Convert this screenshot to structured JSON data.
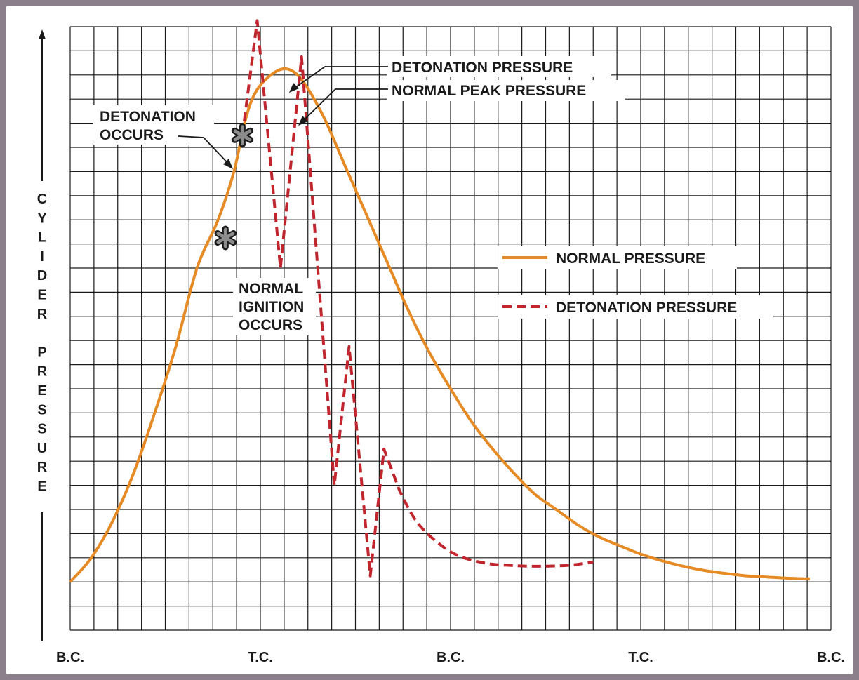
{
  "chart_data": {
    "type": "line",
    "ylabel": "CYLIDER PRESSURE",
    "x_ticks": [
      "B.C.",
      "T.C.",
      "B.C.",
      "T.C.",
      "B.C."
    ],
    "xlim": [
      0,
      720
    ],
    "ylim": [
      0,
      100
    ],
    "grid": true,
    "legend_position": "right",
    "colors": {
      "normal": "#e58a24",
      "detonation": "#c1262e",
      "grid": "#1a1a1a",
      "frame_bg": "#8b7f8c"
    },
    "series": [
      {
        "name": "NORMAL PRESSURE",
        "style": "solid",
        "points": [
          [
            0,
            8
          ],
          [
            20,
            12
          ],
          [
            40,
            18
          ],
          [
            60,
            26
          ],
          [
            80,
            36
          ],
          [
            100,
            47
          ],
          [
            120,
            60
          ],
          [
            140,
            68
          ],
          [
            155,
            76
          ],
          [
            165,
            84
          ],
          [
            175,
            89
          ],
          [
            190,
            92
          ],
          [
            205,
            93
          ],
          [
            220,
            91
          ],
          [
            240,
            85
          ],
          [
            260,
            77
          ],
          [
            280,
            69
          ],
          [
            300,
            61
          ],
          [
            320,
            53
          ],
          [
            340,
            46
          ],
          [
            360,
            40
          ],
          [
            380,
            34.5
          ],
          [
            400,
            30
          ],
          [
            420,
            26
          ],
          [
            440,
            22.5
          ],
          [
            460,
            20
          ],
          [
            480,
            17.5
          ],
          [
            500,
            15.5
          ],
          [
            520,
            14
          ],
          [
            540,
            12.6
          ],
          [
            560,
            11.5
          ],
          [
            580,
            10.6
          ],
          [
            600,
            9.9
          ],
          [
            620,
            9.4
          ],
          [
            640,
            9.0
          ],
          [
            660,
            8.8
          ],
          [
            680,
            8.6
          ],
          [
            700,
            8.5
          ]
        ]
      },
      {
        "name": "DETONATION PRESSURE",
        "style": "dashed",
        "points": [
          [
            163,
            82
          ],
          [
            177,
            101
          ],
          [
            199,
            60
          ],
          [
            219,
            95
          ],
          [
            250,
            24
          ],
          [
            264,
            47
          ],
          [
            284,
            9
          ],
          [
            297,
            30
          ],
          [
            312,
            23
          ],
          [
            330,
            17.5
          ],
          [
            360,
            13
          ],
          [
            390,
            11.2
          ],
          [
            420,
            10.7
          ],
          [
            450,
            10.6
          ],
          [
            475,
            10.8
          ],
          [
            495,
            11.3
          ]
        ]
      }
    ],
    "annotations": {
      "detonation_pressure": "DETONATION PRESSURE",
      "normal_peak_pressure": "NORMAL PEAK PRESSURE",
      "detonation_occurs_1": "DETONATION",
      "detonation_occurs_2": "OCCURS",
      "normal_ignition_1": "NORMAL",
      "normal_ignition_2": "IGNITION",
      "normal_ignition_3": "OCCURS"
    },
    "markers": [
      {
        "name": "detonation-star",
        "x": 163,
        "y": 82
      },
      {
        "name": "ignition-star",
        "x": 147,
        "y": 65
      }
    ]
  }
}
